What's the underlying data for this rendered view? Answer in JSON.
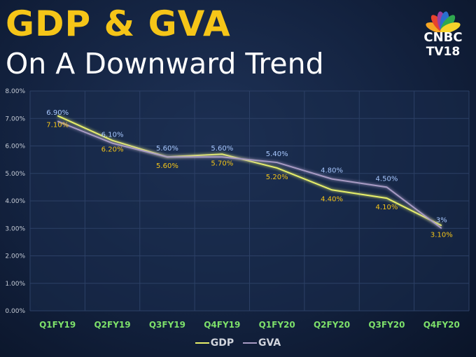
{
  "header": {
    "title": "GDP & GVA",
    "subtitle": "On A Downward Trend"
  },
  "logo": {
    "line1": "CNBC",
    "line2": "TV18",
    "peacock_colors": [
      "#f5a623",
      "#e8432e",
      "#9b3fa0",
      "#2a6fcf",
      "#2fa84f",
      "#f6d32b"
    ]
  },
  "colors": {
    "gdp": "#e7ef6a",
    "gva": "#a89bc4",
    "gdp_label": "#f5c518",
    "gva_label": "#a8c8ff",
    "axis_text": "#c6ccd6",
    "category_text": "#7de06a",
    "grid": "#2c4066"
  },
  "chart_data": {
    "type": "line",
    "categories": [
      "Q1FY19",
      "Q2FY19",
      "Q3FY19",
      "Q4FY19",
      "Q1FY20",
      "Q2FY20",
      "Q3FY20",
      "Q4FY20"
    ],
    "series": [
      {
        "name": "GDP",
        "values": [
          7.1,
          6.2,
          5.6,
          5.7,
          5.2,
          4.4,
          4.1,
          3.1
        ],
        "labels": [
          "7.10%",
          "6.20%",
          "5.60%",
          "5.70%",
          "5.20%",
          "4.40%",
          "4.10%",
          "3.10%"
        ]
      },
      {
        "name": "GVA",
        "values": [
          6.9,
          6.1,
          5.6,
          5.6,
          5.4,
          4.8,
          4.5,
          3.0
        ],
        "labels": [
          "6.90%",
          "6.10%",
          "5.60%",
          "5.60%",
          "5.40%",
          "4.80%",
          "4.50%",
          "3%"
        ]
      }
    ],
    "yticks": [
      "0.00%",
      "1.00%",
      "2.00%",
      "3.00%",
      "4.00%",
      "5.00%",
      "6.00%",
      "7.00%",
      "8.00%"
    ],
    "ylim": [
      0,
      8
    ],
    "grid": true,
    "legend_position": "bottom-center"
  }
}
